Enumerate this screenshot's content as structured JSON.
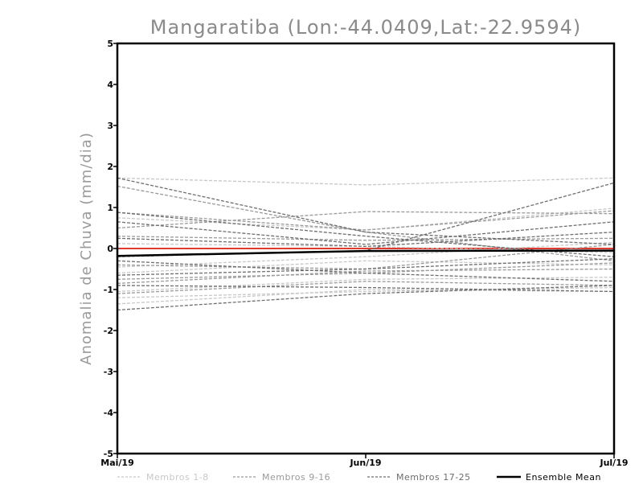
{
  "chart_data": {
    "type": "line",
    "title": "Mangaratiba (Lon:-44.0409,Lat:-22.9594)",
    "ylabel": "Anomalia de Chuva (mm/dia)",
    "xlabel": "",
    "categories": [
      "Mai/19",
      "Jun/19",
      "Jul/19"
    ],
    "ylim": [
      -5,
      5
    ],
    "yticks": [
      -5,
      -4,
      -3,
      -2,
      -1,
      0,
      1,
      2,
      3,
      4,
      5
    ],
    "zero_line_color": "#e03a2f",
    "groups": [
      {
        "name": "Membros 1-8",
        "color": "#c8c8c8",
        "members": [
          [
            1.72,
            1.55,
            1.72
          ],
          [
            0.75,
            0.45,
            0.98
          ],
          [
            0.12,
            0.05,
            -0.1
          ],
          [
            -0.45,
            -0.2,
            0.15
          ],
          [
            -0.6,
            -0.3,
            -0.4
          ],
          [
            -1.05,
            -0.75,
            -0.7
          ],
          [
            -1.2,
            -1.05,
            -0.95
          ],
          [
            -1.35,
            -1.0,
            -1.05
          ]
        ]
      },
      {
        "name": "Membros 9-16",
        "color": "#9a9a9a",
        "members": [
          [
            1.52,
            0.4,
            -0.3
          ],
          [
            0.88,
            0.45,
            0.92
          ],
          [
            0.5,
            0.9,
            0.85
          ],
          [
            0.3,
            0.2,
            0.25
          ],
          [
            -0.4,
            -0.5,
            0.1
          ],
          [
            -0.75,
            -0.6,
            -0.35
          ],
          [
            -0.85,
            -0.55,
            -0.5
          ],
          [
            -1.1,
            -0.8,
            -0.9
          ]
        ]
      },
      {
        "name": "Membros 17-25",
        "color": "#6e6e6e",
        "members": [
          [
            1.72,
            0.4,
            0.1
          ],
          [
            0.88,
            0.3,
            -0.2
          ],
          [
            0.65,
            0.1,
            0.65
          ],
          [
            0.25,
            0.05,
            0.4
          ],
          [
            -0.2,
            -0.05,
            1.6
          ],
          [
            -0.3,
            -0.6,
            -0.8
          ],
          [
            -0.65,
            -0.5,
            -0.25
          ],
          [
            -0.9,
            -0.95,
            -1.05
          ],
          [
            -1.5,
            -1.1,
            -0.9
          ]
        ]
      },
      {
        "name": "Ensemble Mean",
        "color": "#000000",
        "members": [
          [
            -0.18,
            -0.06,
            -0.05
          ]
        ]
      }
    ]
  }
}
